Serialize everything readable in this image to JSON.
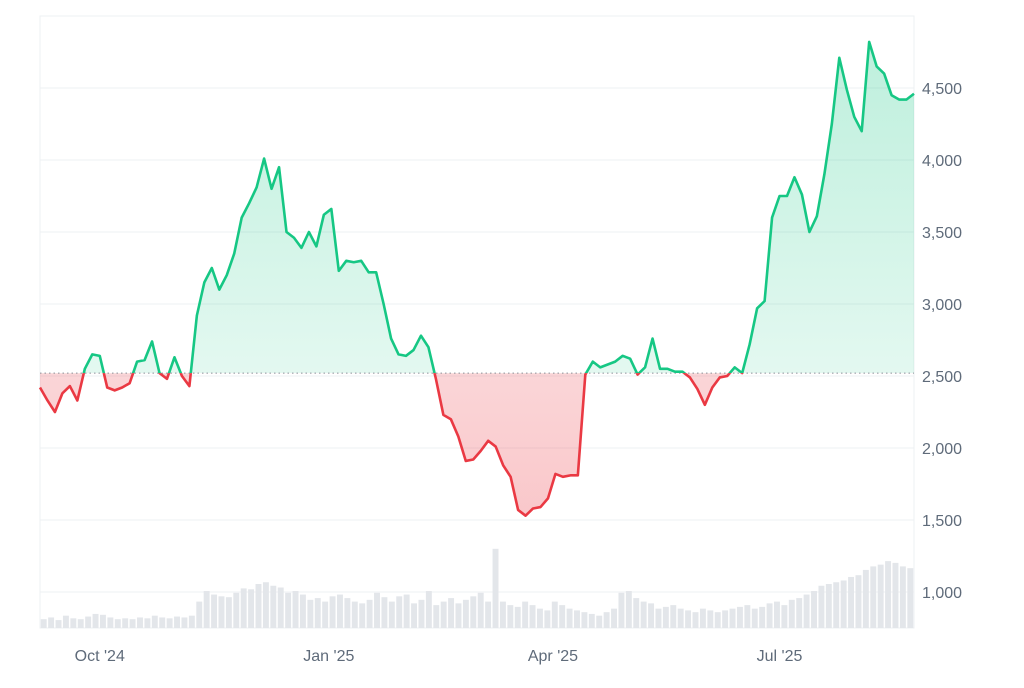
{
  "chart_data": {
    "type": "line",
    "title": "",
    "xlabel": "",
    "ylabel": "",
    "baseline": 2520,
    "ylim": [
      750,
      5000
    ],
    "yticks": [
      {
        "value": 1000,
        "label": "1,000"
      },
      {
        "value": 1500,
        "label": "1,500"
      },
      {
        "value": 2000,
        "label": "2,000"
      },
      {
        "value": 2500,
        "label": "2,500"
      },
      {
        "value": 3000,
        "label": "3,000"
      },
      {
        "value": 3500,
        "label": "3,500"
      },
      {
        "value": 4000,
        "label": "4,000"
      },
      {
        "value": 4500,
        "label": "4,500"
      }
    ],
    "xticks": [
      {
        "date": "2024-10-01",
        "label": "Oct '24"
      },
      {
        "date": "2025-01-01",
        "label": "Jan '25"
      },
      {
        "date": "2025-04-01",
        "label": "Apr '25"
      },
      {
        "date": "2025-07-01",
        "label": "Jul '25"
      }
    ],
    "x_range": [
      "2024-09-07",
      "2025-08-24"
    ],
    "grid": true,
    "colors": {
      "up": "#16c784",
      "down": "#ea3943",
      "up_fill": "#16c784",
      "down_fill": "#ea3943",
      "grid": "#eef0f3",
      "baseline": "#8a9099",
      "volume": "#e3e6ea"
    },
    "series": [
      {
        "kind": "price",
        "x": [
          "2024-09-07",
          "2024-09-10",
          "2024-09-13",
          "2024-09-16",
          "2024-09-19",
          "2024-09-22",
          "2024-09-25",
          "2024-09-28",
          "2024-10-01",
          "2024-10-04",
          "2024-10-07",
          "2024-10-10",
          "2024-10-13",
          "2024-10-16",
          "2024-10-19",
          "2024-10-22",
          "2024-10-25",
          "2024-10-28",
          "2024-10-31",
          "2024-11-03",
          "2024-11-06",
          "2024-11-09",
          "2024-11-12",
          "2024-11-15",
          "2024-11-18",
          "2024-11-21",
          "2024-11-24",
          "2024-11-27",
          "2024-11-30",
          "2024-12-03",
          "2024-12-06",
          "2024-12-09",
          "2024-12-12",
          "2024-12-15",
          "2024-12-18",
          "2024-12-21",
          "2024-12-24",
          "2024-12-27",
          "2024-12-30",
          "2025-01-02",
          "2025-01-05",
          "2025-01-08",
          "2025-01-11",
          "2025-01-14",
          "2025-01-17",
          "2025-01-20",
          "2025-01-23",
          "2025-01-26",
          "2025-01-29",
          "2025-02-01",
          "2025-02-04",
          "2025-02-07",
          "2025-02-10",
          "2025-02-13",
          "2025-02-16",
          "2025-02-19",
          "2025-02-22",
          "2025-02-25",
          "2025-02-28",
          "2025-03-03",
          "2025-03-06",
          "2025-03-09",
          "2025-03-12",
          "2025-03-15",
          "2025-03-18",
          "2025-03-21",
          "2025-03-24",
          "2025-03-27",
          "2025-03-30",
          "2025-04-02",
          "2025-04-05",
          "2025-04-08",
          "2025-04-11",
          "2025-04-14",
          "2025-04-17",
          "2025-04-20",
          "2025-04-23",
          "2025-04-26",
          "2025-04-29",
          "2025-05-02",
          "2025-05-05",
          "2025-05-08",
          "2025-05-11",
          "2025-05-14",
          "2025-05-17",
          "2025-05-20",
          "2025-05-23",
          "2025-05-26",
          "2025-05-29",
          "2025-06-01",
          "2025-06-04",
          "2025-06-07",
          "2025-06-10",
          "2025-06-13",
          "2025-06-16",
          "2025-06-19",
          "2025-06-22",
          "2025-06-25",
          "2025-06-28",
          "2025-07-01",
          "2025-07-04",
          "2025-07-07",
          "2025-07-10",
          "2025-07-13",
          "2025-07-16",
          "2025-07-19",
          "2025-07-22",
          "2025-07-25",
          "2025-07-28",
          "2025-07-31",
          "2025-08-03",
          "2025-08-06",
          "2025-08-09",
          "2025-08-12",
          "2025-08-15",
          "2025-08-18",
          "2025-08-21",
          "2025-08-24"
        ],
        "values": [
          2420,
          2330,
          2250,
          2380,
          2430,
          2330,
          2550,
          2650,
          2640,
          2420,
          2400,
          2420,
          2450,
          2600,
          2610,
          2740,
          2520,
          2480,
          2630,
          2500,
          2430,
          2920,
          3150,
          3250,
          3100,
          3200,
          3350,
          3600,
          3700,
          3810,
          4010,
          3800,
          3950,
          3500,
          3460,
          3390,
          3500,
          3400,
          3620,
          3660,
          3230,
          3300,
          3290,
          3300,
          3220,
          3220,
          3000,
          2760,
          2650,
          2640,
          2680,
          2780,
          2700,
          2480,
          2230,
          2200,
          2080,
          1910,
          1920,
          1980,
          2050,
          2010,
          1880,
          1800,
          1570,
          1530,
          1580,
          1590,
          1650,
          1820,
          1800,
          1810,
          1810,
          2510,
          2600,
          2560,
          2580,
          2600,
          2640,
          2620,
          2510,
          2560,
          2760,
          2550,
          2550,
          2530,
          2530,
          2490,
          2410,
          2300,
          2420,
          2490,
          2500,
          2560,
          2520,
          2720,
          2970,
          3020,
          3600,
          3750,
          3750,
          3880,
          3760,
          3500,
          3610,
          3900,
          4250,
          4710,
          4490,
          4300,
          4200,
          4820,
          4650,
          4600,
          4450,
          4420,
          4420,
          4460
        ]
      },
      {
        "kind": "volume",
        "values": [
          0.1,
          0.12,
          0.09,
          0.14,
          0.11,
          0.1,
          0.13,
          0.16,
          0.15,
          0.12,
          0.1,
          0.11,
          0.1,
          0.12,
          0.11,
          0.14,
          0.12,
          0.11,
          0.13,
          0.12,
          0.14,
          0.3,
          0.42,
          0.38,
          0.36,
          0.35,
          0.4,
          0.45,
          0.44,
          0.5,
          0.52,
          0.48,
          0.46,
          0.4,
          0.42,
          0.38,
          0.32,
          0.34,
          0.3,
          0.36,
          0.38,
          0.34,
          0.3,
          0.28,
          0.32,
          0.4,
          0.35,
          0.3,
          0.36,
          0.38,
          0.28,
          0.32,
          0.42,
          0.26,
          0.3,
          0.34,
          0.28,
          0.32,
          0.36,
          0.4,
          0.3,
          0.9,
          0.3,
          0.26,
          0.24,
          0.3,
          0.26,
          0.22,
          0.2,
          0.3,
          0.26,
          0.22,
          0.2,
          0.18,
          0.16,
          0.14,
          0.18,
          0.22,
          0.4,
          0.42,
          0.34,
          0.3,
          0.28,
          0.22,
          0.24,
          0.26,
          0.22,
          0.2,
          0.18,
          0.22,
          0.2,
          0.18,
          0.2,
          0.22,
          0.24,
          0.26,
          0.22,
          0.24,
          0.28,
          0.3,
          0.26,
          0.32,
          0.34,
          0.38,
          0.42,
          0.48,
          0.5,
          0.52,
          0.54,
          0.58,
          0.6,
          0.66,
          0.7,
          0.72,
          0.76,
          0.74,
          0.7,
          0.68
        ]
      }
    ]
  }
}
